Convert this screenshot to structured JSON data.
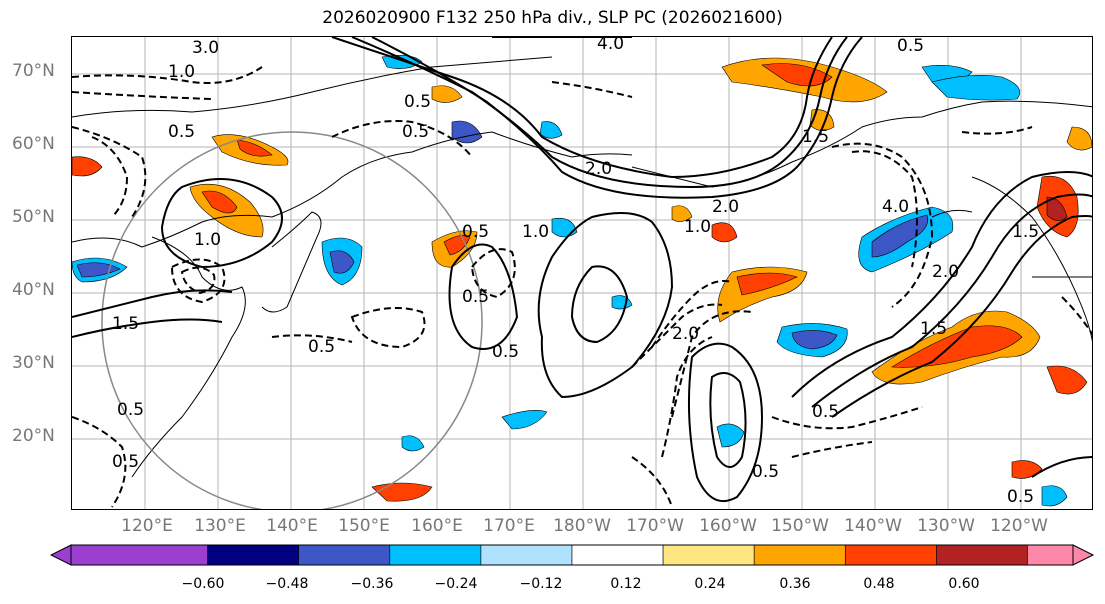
{
  "title": "2026020900 F132 250 hPa div., SLP PC (2026021600)",
  "lat_labels": [
    "70°N",
    "60°N",
    "50°N",
    "40°N",
    "30°N",
    "20°N"
  ],
  "lon_labels": [
    "120°E",
    "130°E",
    "140°E",
    "150°E",
    "160°E",
    "170°E",
    "180°W",
    "170°W",
    "160°W",
    "150°W",
    "140°W",
    "130°W",
    "120°W"
  ],
  "contour_labels": [
    "4.0",
    "0.5",
    "3.0",
    "1.0",
    "2.0",
    "0.5",
    "0.5",
    "0.5",
    "0.5",
    "1.0",
    "1.5",
    "0.5",
    "0.5",
    "0.5",
    "1.0",
    "2.0",
    "1.5",
    "2.0",
    "1.5",
    "4.0",
    "2.0",
    "1.5",
    "0.5",
    "0.5",
    "0.5",
    "0.5",
    "1.0",
    "0.5"
  ],
  "colorbar": {
    "colors": [
      "#9b3fd1",
      "#000080",
      "#3d57c7",
      "#00bfff",
      "#b0e2ff",
      "#ffffff",
      "#ffe680",
      "#ffa500",
      "#ff4000",
      "#b22222",
      "#ff88aa"
    ],
    "ticks": [
      "−0.60",
      "−0.48",
      "−0.36",
      "−0.24",
      "−0.12",
      "0.12",
      "0.24",
      "0.36",
      "0.48",
      "0.60"
    ]
  }
}
